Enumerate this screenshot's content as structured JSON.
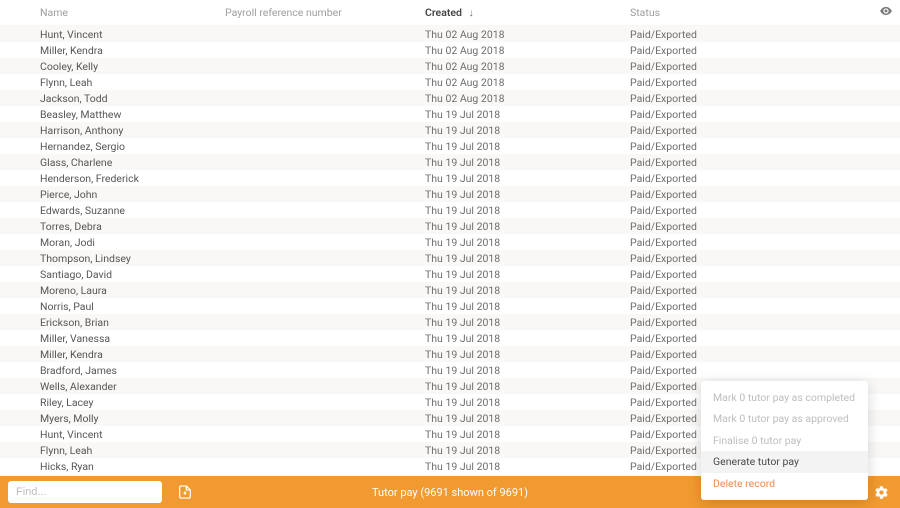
{
  "table": {
    "columns": {
      "name": "Name",
      "payroll": "Payroll reference number",
      "created": "Created",
      "status": "Status"
    },
    "sort_column": "created",
    "sort_direction": "desc",
    "rows": [
      {
        "name": "Hunt, Vincent",
        "created": "Thu 02 Aug 2018",
        "status": "Paid/Exported"
      },
      {
        "name": "Miller, Kendra",
        "created": "Thu 02 Aug 2018",
        "status": "Paid/Exported"
      },
      {
        "name": "Cooley, Kelly",
        "created": "Thu 02 Aug 2018",
        "status": "Paid/Exported"
      },
      {
        "name": "Flynn, Leah",
        "created": "Thu 02 Aug 2018",
        "status": "Paid/Exported"
      },
      {
        "name": "Jackson, Todd",
        "created": "Thu 02 Aug 2018",
        "status": "Paid/Exported"
      },
      {
        "name": "Beasley, Matthew",
        "created": "Thu 19 Jul 2018",
        "status": "Paid/Exported"
      },
      {
        "name": "Harrison, Anthony",
        "created": "Thu 19 Jul 2018",
        "status": "Paid/Exported"
      },
      {
        "name": "Hernandez, Sergio",
        "created": "Thu 19 Jul 2018",
        "status": "Paid/Exported"
      },
      {
        "name": "Glass, Charlene",
        "created": "Thu 19 Jul 2018",
        "status": "Paid/Exported"
      },
      {
        "name": "Henderson, Frederick",
        "created": "Thu 19 Jul 2018",
        "status": "Paid/Exported"
      },
      {
        "name": "Pierce, John",
        "created": "Thu 19 Jul 2018",
        "status": "Paid/Exported"
      },
      {
        "name": "Edwards, Suzanne",
        "created": "Thu 19 Jul 2018",
        "status": "Paid/Exported"
      },
      {
        "name": "Torres, Debra",
        "created": "Thu 19 Jul 2018",
        "status": "Paid/Exported"
      },
      {
        "name": "Moran, Jodi",
        "created": "Thu 19 Jul 2018",
        "status": "Paid/Exported"
      },
      {
        "name": "Thompson, Lindsey",
        "created": "Thu 19 Jul 2018",
        "status": "Paid/Exported"
      },
      {
        "name": "Santiago, David",
        "created": "Thu 19 Jul 2018",
        "status": "Paid/Exported"
      },
      {
        "name": "Moreno, Laura",
        "created": "Thu 19 Jul 2018",
        "status": "Paid/Exported"
      },
      {
        "name": "Norris, Paul",
        "created": "Thu 19 Jul 2018",
        "status": "Paid/Exported"
      },
      {
        "name": "Erickson, Brian",
        "created": "Thu 19 Jul 2018",
        "status": "Paid/Exported"
      },
      {
        "name": "Miller, Vanessa",
        "created": "Thu 19 Jul 2018",
        "status": "Paid/Exported"
      },
      {
        "name": "Miller, Kendra",
        "created": "Thu 19 Jul 2018",
        "status": "Paid/Exported"
      },
      {
        "name": "Bradford, James",
        "created": "Thu 19 Jul 2018",
        "status": "Paid/Exported"
      },
      {
        "name": "Wells, Alexander",
        "created": "Thu 19 Jul 2018",
        "status": "Paid/Exported"
      },
      {
        "name": "Riley, Lacey",
        "created": "Thu 19 Jul 2018",
        "status": "Paid/Exported"
      },
      {
        "name": "Myers, Molly",
        "created": "Thu 19 Jul 2018",
        "status": "Paid/Exported"
      },
      {
        "name": "Hunt, Vincent",
        "created": "Thu 19 Jul 2018",
        "status": "Paid/Exported"
      },
      {
        "name": "Flynn, Leah",
        "created": "Thu 19 Jul 2018",
        "status": "Paid/Exported"
      },
      {
        "name": "Hicks, Ryan",
        "created": "Thu 19 Jul 2018",
        "status": "Paid/Exported"
      }
    ]
  },
  "footer": {
    "find_placeholder": "Find...",
    "status_text": "Tutor pay (9691 shown of 9691)"
  },
  "menu": {
    "items": [
      {
        "label": "Mark 0 tutor pay as completed",
        "state": "disabled"
      },
      {
        "label": "Mark 0 tutor pay as approved",
        "state": "disabled"
      },
      {
        "label": "Finalise 0 tutor pay",
        "state": "disabled"
      },
      {
        "label": "Generate tutor pay",
        "state": "hovered"
      },
      {
        "label": "Delete record",
        "state": "danger"
      }
    ]
  },
  "colors": {
    "accent": "#f19a2f",
    "row_alt": "#faf8f6",
    "text": "#4a4a4a",
    "muted": "#9e9e9e",
    "danger": "#f08a4c"
  }
}
